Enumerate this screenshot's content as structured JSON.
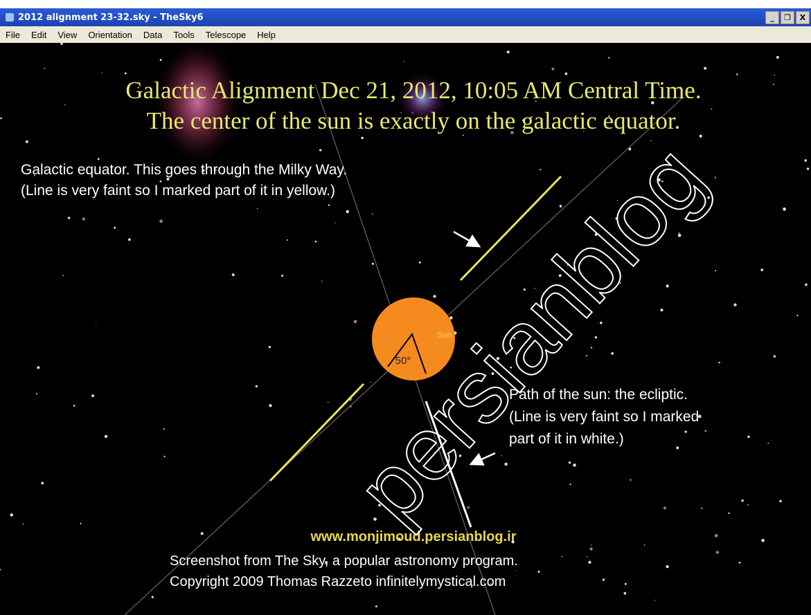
{
  "window": {
    "title": "2012 alignment 23-32.sky - TheSky6",
    "buttons": [
      "_",
      "❐",
      "X"
    ]
  },
  "menu": [
    "File",
    "Edit",
    "View",
    "Orientation",
    "Data",
    "Tools",
    "Telescope",
    "Help"
  ],
  "sky": {
    "title_lines": [
      "Galactic Alignment Dec 21, 2012, 10:05 AM Central Time.",
      "The center of the sun is exactly on the galactic equator."
    ],
    "equator_note": [
      "Galactic equator. This goes through the Milky Way.",
      "(Line is very faint so I marked part of it in yellow.)"
    ],
    "ecliptic_note": [
      "Path of the sun: the ecliptic.",
      "(Line is very faint so I marked",
      "part of it in white.)"
    ],
    "sun_label": "Sun",
    "angle_label": "50°",
    "website": "www.monjimoud.persianblog.ir",
    "credits": [
      "Screenshot from The Sky, a popular astronomy program.",
      "Copyright 2009 Thomas Razzeto   infinitelymystical.com"
    ],
    "watermark": "persianblog"
  }
}
